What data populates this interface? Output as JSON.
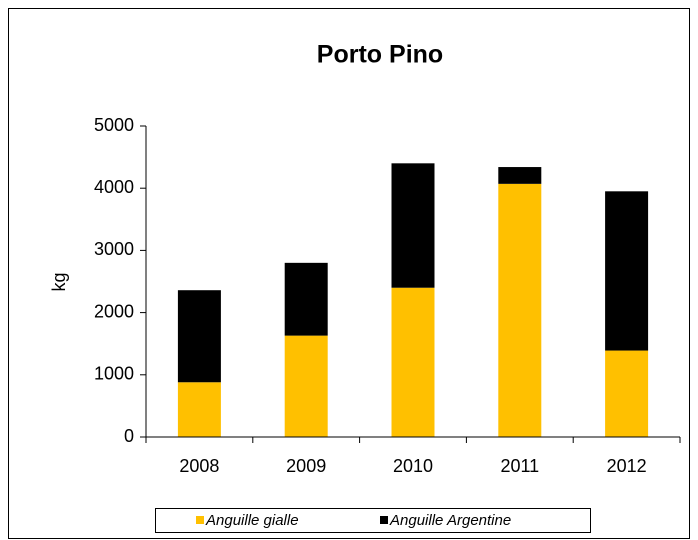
{
  "chart_data": {
    "type": "stacked_bar",
    "title": "Porto Pino",
    "y_label": "kg",
    "categories": [
      "2008",
      "2009",
      "2010",
      "2011",
      "2012"
    ],
    "series": [
      {
        "name": "Anguille gialle",
        "color": "#ffc000",
        "values": [
          880,
          1630,
          2400,
          4070,
          1390
        ]
      },
      {
        "name": "Anguille Argentine",
        "color": "#000000",
        "values": [
          1480,
          1170,
          2000,
          270,
          2560
        ]
      }
    ],
    "ylim": [
      0,
      5000
    ],
    "yticks": [
      0,
      1000,
      2000,
      3000,
      4000,
      5000
    ],
    "legend": "bottom"
  }
}
